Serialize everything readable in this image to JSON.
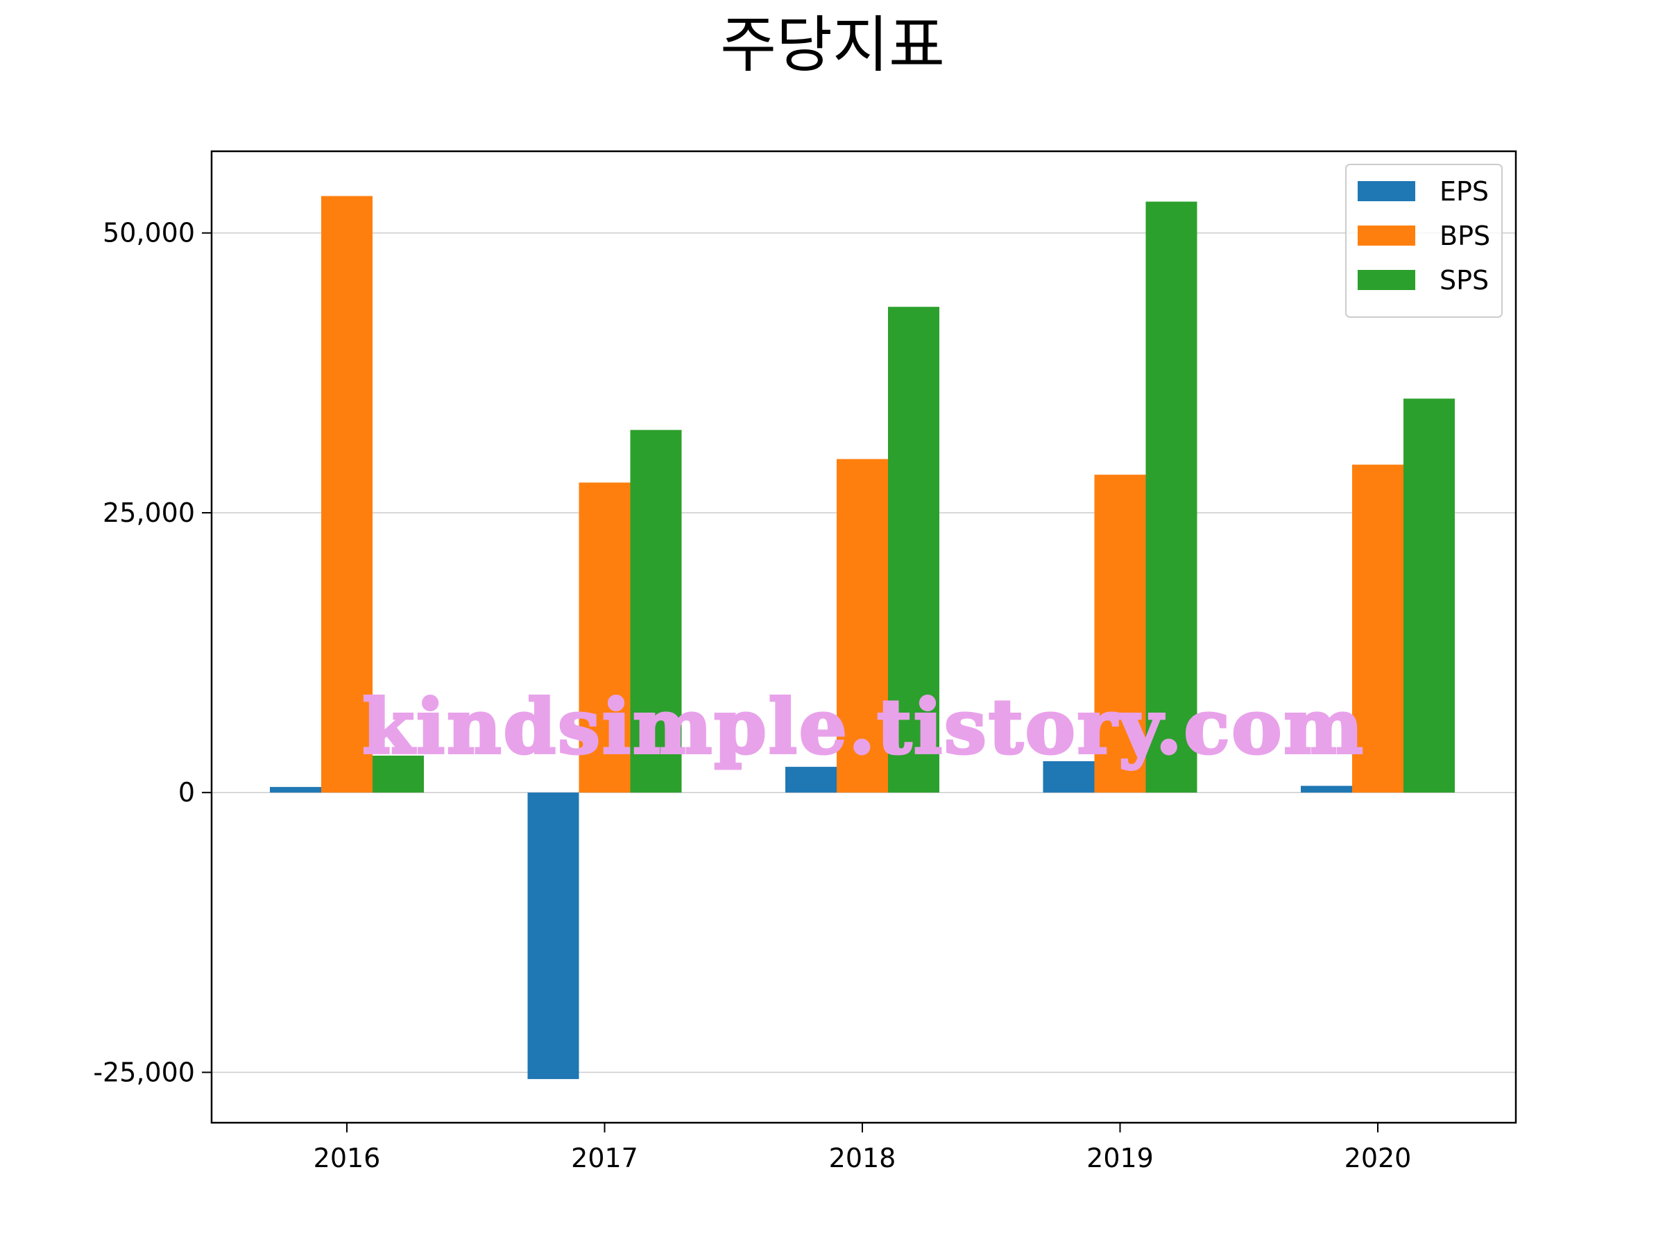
{
  "watermark": "kindsimple.tistory.com",
  "chart_data": {
    "type": "bar",
    "title": "주당지표",
    "xlabel": "",
    "ylabel": "",
    "categories": [
      "2016",
      "2017",
      "2018",
      "2019",
      "2020"
    ],
    "series": [
      {
        "name": "EPS",
        "color": "#1f77b4",
        "values": [
          500,
          -25600,
          2300,
          2800,
          600
        ]
      },
      {
        "name": "BPS",
        "color": "#ff7f0e",
        "values": [
          53300,
          27700,
          29800,
          28400,
          29300
        ]
      },
      {
        "name": "SPS",
        "color": "#2ca02c",
        "values": [
          3300,
          32400,
          43400,
          52800,
          35200
        ]
      }
    ],
    "ylim": [
      -29500,
      57300
    ],
    "yticks": [
      -25000,
      0,
      25000,
      50000
    ],
    "ytick_labels": [
      "-25,000",
      "0",
      "25,000",
      "50,000"
    ],
    "grid": "y",
    "legend_position": "top-right"
  }
}
